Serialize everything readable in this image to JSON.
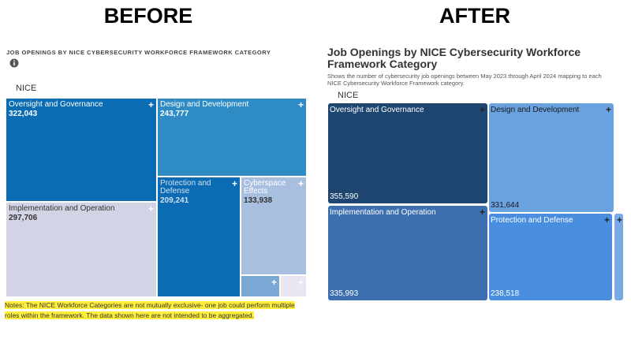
{
  "before": {
    "heading": "BEFORE",
    "title": "JOB OPENINGS BY NICE CYBERSECURITY WORKFORCE FRAMEWORK CATEGORY",
    "root": "NICE",
    "tiles": [
      {
        "label": "Oversight and Governance",
        "value": "322,043"
      },
      {
        "label": "Design and Development",
        "value": "243,777"
      },
      {
        "label": "Implementation and Operation",
        "value": "297,706"
      },
      {
        "label": "Protection and Defense",
        "value": "209,241"
      },
      {
        "label": "Cyberspace Effects",
        "value": "133,938"
      }
    ],
    "note": "Notes: The NICE Workforce Categories are not mutually exclusive- one job could perform multiple roles within the framework. The data shown here are not intended to be aggregated."
  },
  "after": {
    "heading": "AFTER",
    "title": "Job Openings by NICE Cybersecurity Workforce Framework Category",
    "subtitle": "Shows the number of cybersecurity job openings between May 2023 through April 2024 mapping to each NICE Cybersecurity Workforce Framework category.",
    "root": "NICE",
    "tiles": [
      {
        "label": "Oversight and Governance",
        "value": "355,590"
      },
      {
        "label": "Design and Development",
        "value": "331,644"
      },
      {
        "label": "Implementation and Operation",
        "value": "335,993"
      },
      {
        "label": "Protection and Defense",
        "value": "238,518"
      }
    ]
  }
}
